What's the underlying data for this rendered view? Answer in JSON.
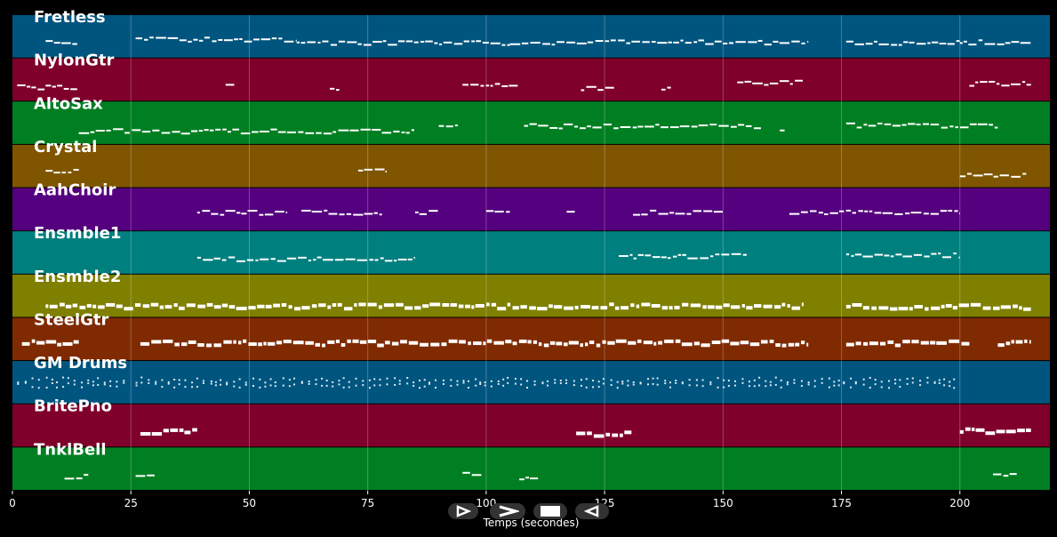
{
  "chart_data": {
    "type": "piano-roll",
    "xlabel": "Temps (secondes)",
    "xlim": [
      0,
      219
    ],
    "xticks": [
      0,
      25,
      50,
      75,
      100,
      125,
      150,
      175,
      200
    ],
    "grid": true,
    "tracks": [
      {
        "name": "Fretless",
        "color": "#00557f",
        "segments": [
          [
            7,
            14
          ],
          [
            26,
            60
          ],
          [
            60,
            105
          ],
          [
            105,
            168
          ],
          [
            176,
            200
          ],
          [
            200,
            215
          ]
        ]
      },
      {
        "name": "NylonGtr",
        "color": "#7f002a",
        "segments": [
          [
            1,
            14
          ],
          [
            45,
            47
          ],
          [
            67,
            69
          ],
          [
            95,
            107
          ],
          [
            120,
            127
          ],
          [
            137,
            139
          ],
          [
            153,
            167
          ],
          [
            202,
            215
          ]
        ]
      },
      {
        "name": "AltoSax",
        "color": "#007f22",
        "segments": [
          [
            14,
            85
          ],
          [
            90,
            94
          ],
          [
            108,
            158
          ],
          [
            162,
            163
          ],
          [
            176,
            208
          ]
        ]
      },
      {
        "name": "Crystal",
        "color": "#7f5500",
        "segments": [
          [
            7,
            14
          ],
          [
            73,
            79
          ],
          [
            200,
            214
          ]
        ]
      },
      {
        "name": "AahChoir",
        "color": "#55007f",
        "segments": [
          [
            39,
            58
          ],
          [
            61,
            78
          ],
          [
            85,
            90
          ],
          [
            100,
            105
          ],
          [
            117,
            119
          ],
          [
            131,
            150
          ],
          [
            164,
            200
          ]
        ]
      },
      {
        "name": "Ensmble1",
        "color": "#007f7f",
        "segments": [
          [
            39,
            85
          ],
          [
            128,
            155
          ],
          [
            176,
            200
          ]
        ]
      },
      {
        "name": "Ensmble2",
        "color": "#7f7f00",
        "segments": [
          [
            7,
            167
          ],
          [
            176,
            215
          ]
        ]
      },
      {
        "name": "SteelGtr",
        "color": "#7f2a00",
        "segments": [
          [
            2,
            14
          ],
          [
            27,
            168
          ],
          [
            176,
            202
          ],
          [
            208,
            215
          ]
        ]
      },
      {
        "name": "GM Drums",
        "color": "#00557f",
        "segments": [
          [
            1,
            24
          ],
          [
            26,
            200
          ]
        ]
      },
      {
        "name": "BritePno",
        "color": "#7f002a",
        "segments": [
          [
            27,
            39
          ],
          [
            119,
            131
          ],
          [
            200,
            215
          ]
        ]
      },
      {
        "name": "TnklBell",
        "color": "#007f22",
        "segments": [
          [
            11,
            16
          ],
          [
            26,
            30
          ],
          [
            95,
            99
          ],
          [
            107,
            111
          ],
          [
            207,
            212
          ]
        ]
      }
    ]
  },
  "controls": [
    {
      "icon": "play-icon"
    },
    {
      "icon": "fast-forward-icon"
    },
    {
      "icon": "stop-icon"
    },
    {
      "icon": "rewind-icon"
    }
  ]
}
